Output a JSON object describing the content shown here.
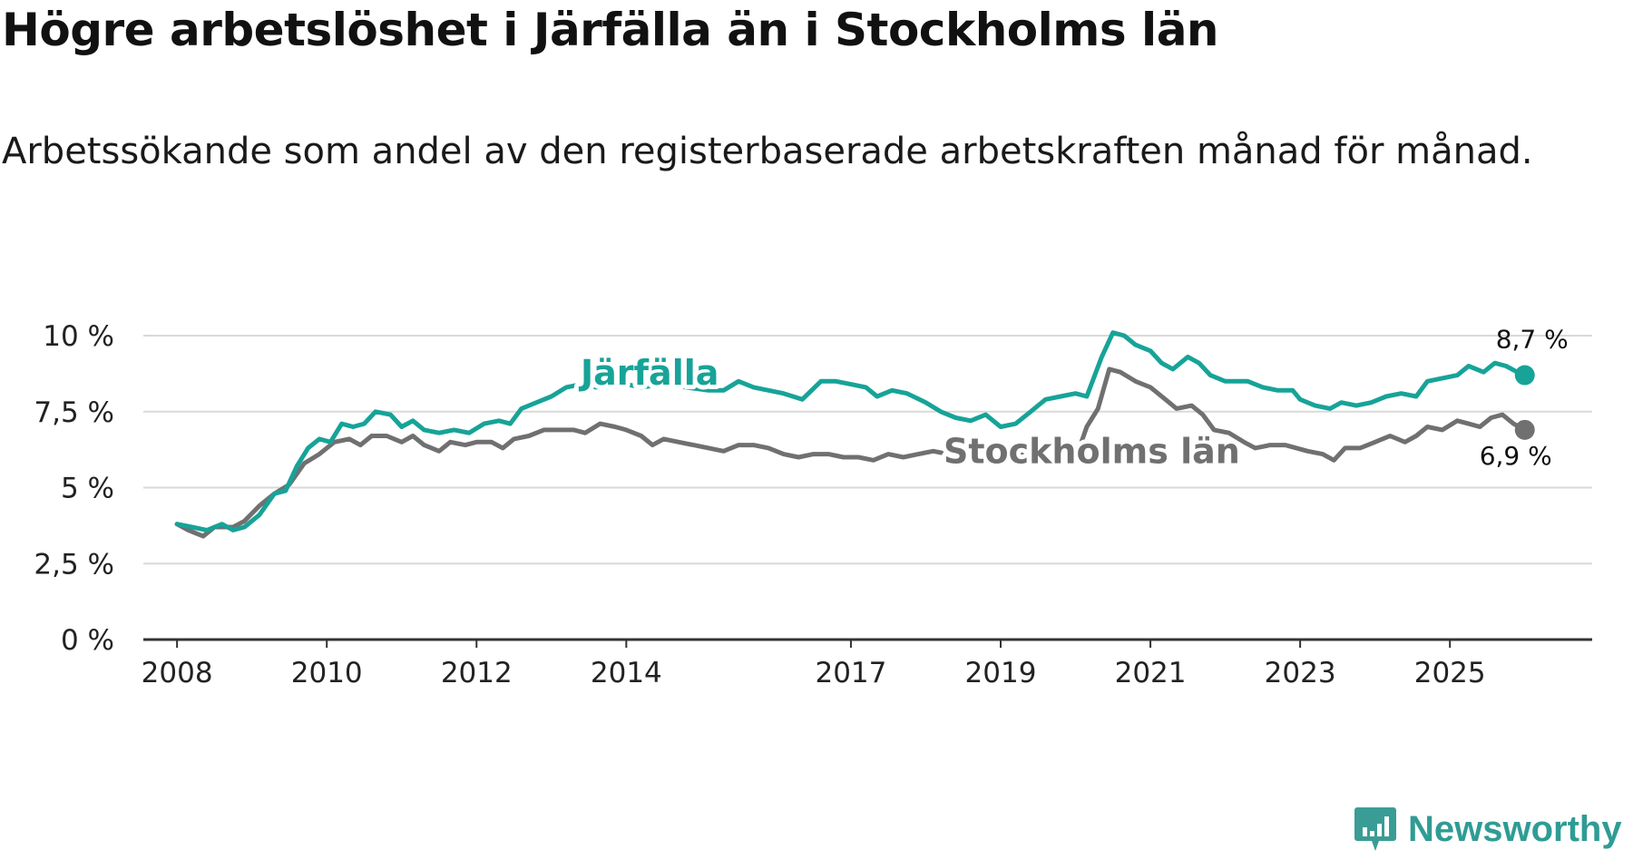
{
  "chart_data": {
    "type": "line",
    "title": "Högre arbetslöshet i Järfälla än i Stockholms län",
    "subtitle": "Arbetssökande som andel av den registerbaserade arbetskraften månad för månad.",
    "xlabel": "",
    "ylabel": "",
    "ylim": [
      0,
      10
    ],
    "xlim": [
      2007.55,
      2026.9
    ],
    "y_ticks": [
      0,
      2.5,
      5,
      7.5,
      10
    ],
    "y_tick_labels": [
      "0 %",
      "2,5 %",
      "5 %",
      "7,5 %",
      "10 %"
    ],
    "x_ticks": [
      2008,
      2010,
      2012,
      2014,
      2017,
      2019,
      2021,
      2023,
      2025
    ],
    "x_tick_labels": [
      "2008",
      "2010",
      "2012",
      "2014",
      "2017",
      "2019",
      "2021",
      "2023",
      "2025"
    ],
    "grid": true,
    "series": [
      {
        "name": "Järfälla",
        "color": "#17a398",
        "end_label": "8,7 %",
        "points": [
          [
            2008.0,
            3.8
          ],
          [
            2008.2,
            3.7
          ],
          [
            2008.4,
            3.6
          ],
          [
            2008.6,
            3.8
          ],
          [
            2008.75,
            3.6
          ],
          [
            2008.9,
            3.7
          ],
          [
            2009.1,
            4.1
          ],
          [
            2009.3,
            4.8
          ],
          [
            2009.45,
            4.9
          ],
          [
            2009.6,
            5.7
          ],
          [
            2009.75,
            6.3
          ],
          [
            2009.9,
            6.6
          ],
          [
            2010.05,
            6.5
          ],
          [
            2010.2,
            7.1
          ],
          [
            2010.35,
            7.0
          ],
          [
            2010.5,
            7.1
          ],
          [
            2010.65,
            7.5
          ],
          [
            2010.85,
            7.4
          ],
          [
            2011.0,
            7.0
          ],
          [
            2011.15,
            7.2
          ],
          [
            2011.3,
            6.9
          ],
          [
            2011.5,
            6.8
          ],
          [
            2011.7,
            6.9
          ],
          [
            2011.9,
            6.8
          ],
          [
            2012.1,
            7.1
          ],
          [
            2012.3,
            7.2
          ],
          [
            2012.45,
            7.1
          ],
          [
            2012.6,
            7.6
          ],
          [
            2012.8,
            7.8
          ],
          [
            2013.0,
            8.0
          ],
          [
            2013.2,
            8.3
          ],
          [
            2013.4,
            8.4
          ],
          [
            2013.6,
            8.3
          ],
          [
            2013.8,
            8.5
          ],
          [
            2014.0,
            8.4
          ],
          [
            2014.2,
            8.3
          ],
          [
            2014.5,
            8.4
          ],
          [
            2014.8,
            8.3
          ],
          [
            2015.1,
            8.2
          ],
          [
            2015.3,
            8.2
          ],
          [
            2015.5,
            8.5
          ],
          [
            2015.7,
            8.3
          ],
          [
            2015.9,
            8.2
          ],
          [
            2016.1,
            8.1
          ],
          [
            2016.35,
            7.9
          ],
          [
            2016.6,
            8.5
          ],
          [
            2016.8,
            8.5
          ],
          [
            2017.0,
            8.4
          ],
          [
            2017.2,
            8.3
          ],
          [
            2017.35,
            8.0
          ],
          [
            2017.55,
            8.2
          ],
          [
            2017.75,
            8.1
          ],
          [
            2018.0,
            7.8
          ],
          [
            2018.2,
            7.5
          ],
          [
            2018.4,
            7.3
          ],
          [
            2018.6,
            7.2
          ],
          [
            2018.8,
            7.4
          ],
          [
            2019.0,
            7.0
          ],
          [
            2019.2,
            7.1
          ],
          [
            2019.4,
            7.5
          ],
          [
            2019.6,
            7.9
          ],
          [
            2019.8,
            8.0
          ],
          [
            2020.0,
            8.1
          ],
          [
            2020.15,
            8.0
          ],
          [
            2020.35,
            9.3
          ],
          [
            2020.5,
            10.1
          ],
          [
            2020.65,
            10.0
          ],
          [
            2020.8,
            9.7
          ],
          [
            2021.0,
            9.5
          ],
          [
            2021.15,
            9.1
          ],
          [
            2021.3,
            8.9
          ],
          [
            2021.5,
            9.3
          ],
          [
            2021.65,
            9.1
          ],
          [
            2021.8,
            8.7
          ],
          [
            2022.0,
            8.5
          ],
          [
            2022.3,
            8.5
          ],
          [
            2022.5,
            8.3
          ],
          [
            2022.7,
            8.2
          ],
          [
            2022.9,
            8.2
          ],
          [
            2023.0,
            7.9
          ],
          [
            2023.2,
            7.7
          ],
          [
            2023.4,
            7.6
          ],
          [
            2023.55,
            7.8
          ],
          [
            2023.75,
            7.7
          ],
          [
            2023.95,
            7.8
          ],
          [
            2024.15,
            8.0
          ],
          [
            2024.35,
            8.1
          ],
          [
            2024.55,
            8.0
          ],
          [
            2024.7,
            8.5
          ],
          [
            2024.9,
            8.6
          ],
          [
            2025.1,
            8.7
          ],
          [
            2025.25,
            9.0
          ],
          [
            2025.45,
            8.8
          ],
          [
            2025.6,
            9.1
          ],
          [
            2025.75,
            9.0
          ],
          [
            2025.9,
            8.8
          ],
          [
            2026.0,
            8.7
          ]
        ]
      },
      {
        "name": "Stockholms län",
        "color": "#707070",
        "end_label": "6,9 %",
        "points": [
          [
            2008.0,
            3.8
          ],
          [
            2008.15,
            3.6
          ],
          [
            2008.35,
            3.4
          ],
          [
            2008.5,
            3.7
          ],
          [
            2008.75,
            3.7
          ],
          [
            2008.9,
            3.9
          ],
          [
            2009.1,
            4.4
          ],
          [
            2009.3,
            4.8
          ],
          [
            2009.5,
            5.1
          ],
          [
            2009.7,
            5.8
          ],
          [
            2009.9,
            6.1
          ],
          [
            2010.1,
            6.5
          ],
          [
            2010.3,
            6.6
          ],
          [
            2010.45,
            6.4
          ],
          [
            2010.6,
            6.7
          ],
          [
            2010.8,
            6.7
          ],
          [
            2011.0,
            6.5
          ],
          [
            2011.15,
            6.7
          ],
          [
            2011.3,
            6.4
          ],
          [
            2011.5,
            6.2
          ],
          [
            2011.65,
            6.5
          ],
          [
            2011.85,
            6.4
          ],
          [
            2012.0,
            6.5
          ],
          [
            2012.2,
            6.5
          ],
          [
            2012.35,
            6.3
          ],
          [
            2012.5,
            6.6
          ],
          [
            2012.7,
            6.7
          ],
          [
            2012.9,
            6.9
          ],
          [
            2013.1,
            6.9
          ],
          [
            2013.3,
            6.9
          ],
          [
            2013.45,
            6.8
          ],
          [
            2013.65,
            7.1
          ],
          [
            2013.85,
            7.0
          ],
          [
            2014.0,
            6.9
          ],
          [
            2014.2,
            6.7
          ],
          [
            2014.35,
            6.4
          ],
          [
            2014.5,
            6.6
          ],
          [
            2014.7,
            6.5
          ],
          [
            2014.9,
            6.4
          ],
          [
            2015.1,
            6.3
          ],
          [
            2015.3,
            6.2
          ],
          [
            2015.5,
            6.4
          ],
          [
            2015.7,
            6.4
          ],
          [
            2015.9,
            6.3
          ],
          [
            2016.1,
            6.1
          ],
          [
            2016.3,
            6.0
          ],
          [
            2016.5,
            6.1
          ],
          [
            2016.7,
            6.1
          ],
          [
            2016.9,
            6.0
          ],
          [
            2017.1,
            6.0
          ],
          [
            2017.3,
            5.9
          ],
          [
            2017.5,
            6.1
          ],
          [
            2017.7,
            6.0
          ],
          [
            2017.9,
            6.1
          ],
          [
            2018.1,
            6.2
          ],
          [
            2018.3,
            6.1
          ],
          [
            2018.5,
            6.0
          ],
          [
            2018.7,
            6.0
          ],
          [
            2018.9,
            5.9
          ],
          [
            2019.1,
            6.0
          ],
          [
            2019.3,
            6.1
          ],
          [
            2019.5,
            6.0
          ],
          [
            2019.7,
            6.0
          ],
          [
            2019.9,
            6.0
          ],
          [
            2020.05,
            6.3
          ],
          [
            2020.15,
            7.0
          ],
          [
            2020.3,
            7.6
          ],
          [
            2020.45,
            8.9
          ],
          [
            2020.6,
            8.8
          ],
          [
            2020.8,
            8.5
          ],
          [
            2021.0,
            8.3
          ],
          [
            2021.2,
            7.9
          ],
          [
            2021.35,
            7.6
          ],
          [
            2021.55,
            7.7
          ],
          [
            2021.7,
            7.4
          ],
          [
            2021.85,
            6.9
          ],
          [
            2022.05,
            6.8
          ],
          [
            2022.25,
            6.5
          ],
          [
            2022.4,
            6.3
          ],
          [
            2022.6,
            6.4
          ],
          [
            2022.8,
            6.4
          ],
          [
            2022.95,
            6.3
          ],
          [
            2023.1,
            6.2
          ],
          [
            2023.3,
            6.1
          ],
          [
            2023.45,
            5.9
          ],
          [
            2023.6,
            6.3
          ],
          [
            2023.8,
            6.3
          ],
          [
            2024.0,
            6.5
          ],
          [
            2024.2,
            6.7
          ],
          [
            2024.4,
            6.5
          ],
          [
            2024.55,
            6.7
          ],
          [
            2024.7,
            7.0
          ],
          [
            2024.9,
            6.9
          ],
          [
            2025.1,
            7.2
          ],
          [
            2025.25,
            7.1
          ],
          [
            2025.4,
            7.0
          ],
          [
            2025.55,
            7.3
          ],
          [
            2025.7,
            7.4
          ],
          [
            2025.85,
            7.1
          ],
          [
            2026.0,
            6.9
          ]
        ]
      }
    ]
  },
  "brand": {
    "name": "Newsworthy",
    "icon": "newsworthy-logo-icon",
    "color": "#3a9d95"
  }
}
